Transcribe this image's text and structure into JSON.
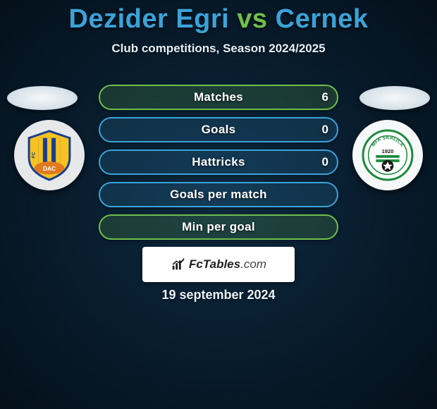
{
  "title": {
    "player1": "Dezider Egri",
    "vs": "vs",
    "player2": "Cernek",
    "player1_color": "#3aa3d9",
    "vs_color": "#6fbf4a",
    "player2_color": "#3aa3d9",
    "fontsize": 38
  },
  "subtitle": "Club competitions, Season 2024/2025",
  "subtitle_fontsize": 17,
  "bars": {
    "layout": {
      "height": 36,
      "radius": 18,
      "gap": 10,
      "label_fontsize": 17
    },
    "items": [
      {
        "label": "Matches",
        "left_value": "",
        "right_value": "6",
        "border_color": "#6fbf4a",
        "bg_color": "rgba(111,191,74,0.18)"
      },
      {
        "label": "Goals",
        "left_value": "",
        "right_value": "0",
        "border_color": "#3aa3d9",
        "bg_color": "rgba(58,163,217,0.15)"
      },
      {
        "label": "Hattricks",
        "left_value": "",
        "right_value": "0",
        "border_color": "#3aa3d9",
        "bg_color": "rgba(58,163,217,0.15)"
      },
      {
        "label": "Goals per match",
        "left_value": "",
        "right_value": "",
        "border_color": "#3aa3d9",
        "bg_color": "rgba(58,163,217,0.15)"
      },
      {
        "label": "Min per goal",
        "left_value": "",
        "right_value": "",
        "border_color": "#6fbf4a",
        "bg_color": "rgba(111,191,74,0.18)"
      }
    ]
  },
  "brand": {
    "name": "FcTables",
    "suffix": ".com",
    "icon_color": "#1a1a1a",
    "box_bg": "#ffffff"
  },
  "date": "19 september 2024",
  "background": {
    "radial_center": "#0d2a42",
    "radial_edge": "#04101a"
  },
  "team_left": {
    "name": "FC DAC 1904",
    "crest_colors": {
      "blue": "#1b3e8c",
      "yellow": "#f6c321",
      "orange": "#e07a1f"
    }
  },
  "team_right": {
    "name": "MFK Skalica",
    "crest_colors": {
      "green": "#1e8a3d",
      "white": "#ffffff",
      "black": "#1a1a1a"
    },
    "year": "1920"
  }
}
